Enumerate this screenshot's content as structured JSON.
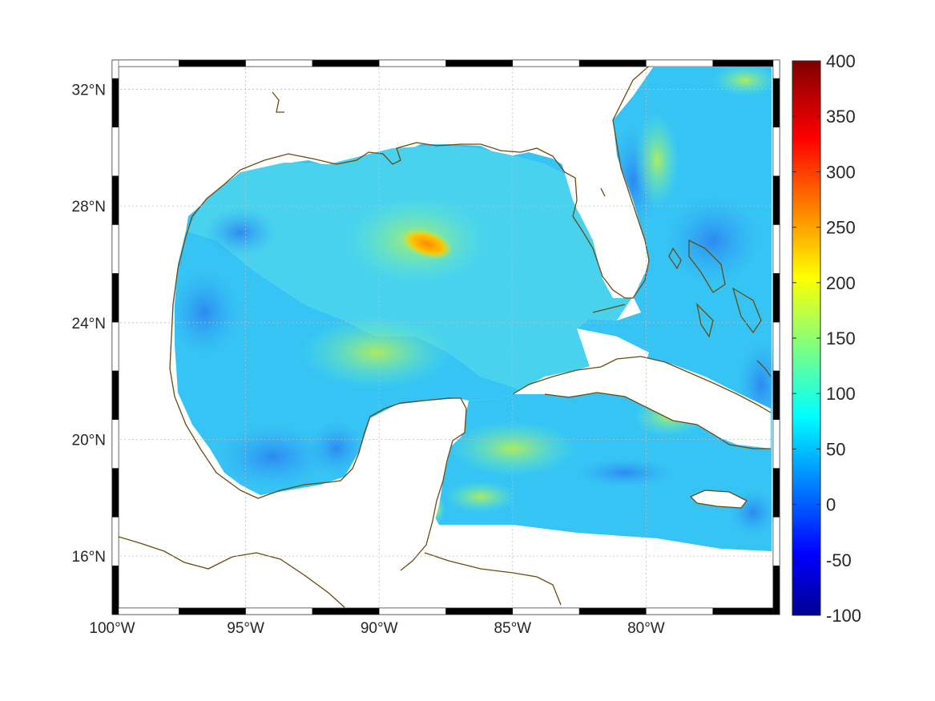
{
  "map": {
    "lon_range": [
      -100,
      -75
    ],
    "lat_range": [
      14,
      33
    ],
    "lon_ticks": [
      {
        "value": -100,
        "label": "100°W"
      },
      {
        "value": -95,
        "label": "95°W"
      },
      {
        "value": -90,
        "label": "90°W"
      },
      {
        "value": -85,
        "label": "85°W"
      },
      {
        "value": -80,
        "label": "80°W"
      }
    ],
    "lat_ticks": [
      {
        "value": 16,
        "label": "16°N"
      },
      {
        "value": 20,
        "label": "20°N"
      },
      {
        "value": 24,
        "label": "24°N"
      },
      {
        "value": 28,
        "label": "28°N"
      },
      {
        "value": 32,
        "label": "32°N"
      }
    ],
    "grid": true,
    "coastline_color": "#6b4a10",
    "hotspot": {
      "lon": -88.2,
      "lat": 26.7,
      "value": 260
    }
  },
  "colorbar": {
    "colormap": "jet",
    "min": -100,
    "max": 400,
    "placement": "right",
    "ticks": [
      {
        "value": 400,
        "label": "400"
      },
      {
        "value": 350,
        "label": "350"
      },
      {
        "value": 300,
        "label": "300"
      },
      {
        "value": 250,
        "label": "250"
      },
      {
        "value": 200,
        "label": "200"
      },
      {
        "value": 150,
        "label": "150"
      },
      {
        "value": 100,
        "label": "100"
      },
      {
        "value": 50,
        "label": "50"
      },
      {
        "value": 0,
        "label": "0"
      },
      {
        "value": -50,
        "label": "-50"
      },
      {
        "value": -100,
        "label": "-100"
      }
    ]
  }
}
